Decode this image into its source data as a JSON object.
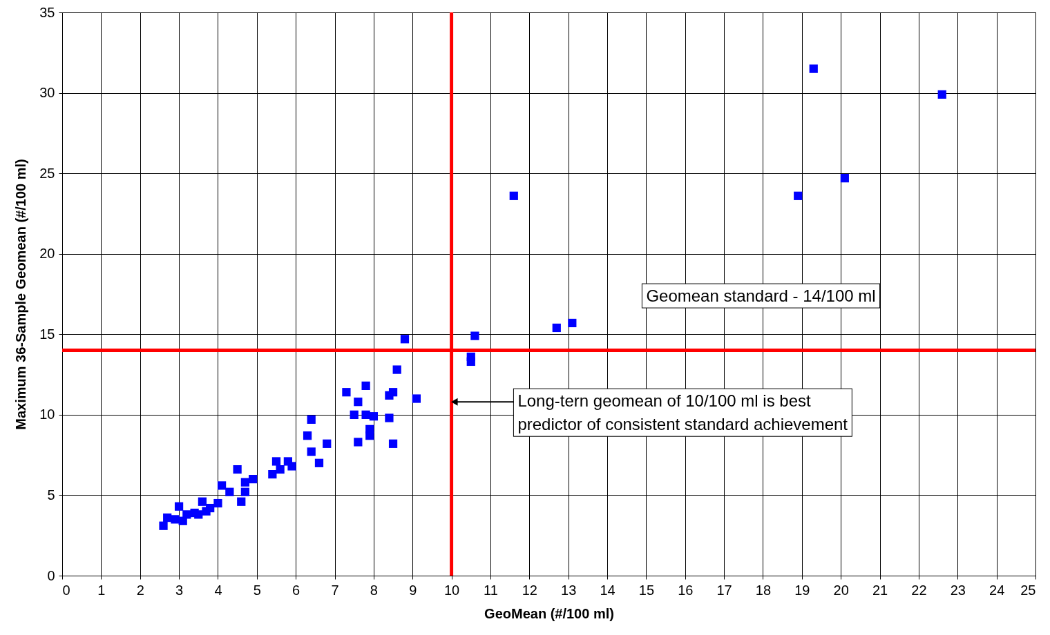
{
  "chart_data": {
    "type": "scatter",
    "xlabel": "GeoMean (#/100 ml)",
    "ylabel": "Maximum 36-Sample Geomean (#/100 ml)",
    "x": [
      2.6,
      2.7,
      2.9,
      3.0,
      3.1,
      3.2,
      3.4,
      3.5,
      3.6,
      3.7,
      3.8,
      4.0,
      4.1,
      4.3,
      4.5,
      4.6,
      4.7,
      4.7,
      4.9,
      5.4,
      5.5,
      5.6,
      5.8,
      5.9,
      6.3,
      6.4,
      6.4,
      6.6,
      6.8,
      7.3,
      7.5,
      7.6,
      7.6,
      7.8,
      7.8,
      7.9,
      7.9,
      8.0,
      8.4,
      8.4,
      8.5,
      8.5,
      8.6,
      8.8,
      9.1,
      10.5,
      10.5,
      10.6,
      11.6,
      12.7,
      13.1,
      18.9,
      19.3,
      20.1,
      22.6
    ],
    "series": [
      {
        "color": "#0000ff",
        "values": [
          3.1,
          3.6,
          3.5,
          4.3,
          3.4,
          3.8,
          3.9,
          3.8,
          4.6,
          4.0,
          4.2,
          4.5,
          5.6,
          5.2,
          6.6,
          4.6,
          5.2,
          5.8,
          6.0,
          6.3,
          7.1,
          6.6,
          7.1,
          6.8,
          8.7,
          9.7,
          7.7,
          7.0,
          8.2,
          11.4,
          10.0,
          10.8,
          8.3,
          11.8,
          10.0,
          9.1,
          8.7,
          9.9,
          9.8,
          11.2,
          11.4,
          8.2,
          12.8,
          14.7,
          11.0,
          13.6,
          13.3,
          14.9,
          23.6,
          15.4,
          15.7,
          23.6,
          31.5,
          24.7,
          29.9
        ]
      }
    ],
    "xlim": [
      0,
      25
    ],
    "ylim": [
      0,
      35
    ],
    "xticks": [
      0,
      1,
      2,
      3,
      4,
      5,
      6,
      7,
      8,
      9,
      10,
      11,
      12,
      13,
      14,
      15,
      16,
      17,
      18,
      19,
      20,
      21,
      22,
      23,
      24,
      25
    ],
    "yticks": [
      0,
      5,
      10,
      15,
      20,
      25,
      30,
      35
    ],
    "grid": true,
    "marker": "square",
    "ref_lines": [
      {
        "axis": "y",
        "value": 14,
        "label": "Geomean standard - 14/100 ml",
        "color": "#ff0000"
      },
      {
        "axis": "x",
        "value": 10,
        "label": "Long-tern geomean of 10/100 ml is best predictor of consistent standard achievement",
        "color": "#ff0000"
      }
    ]
  }
}
